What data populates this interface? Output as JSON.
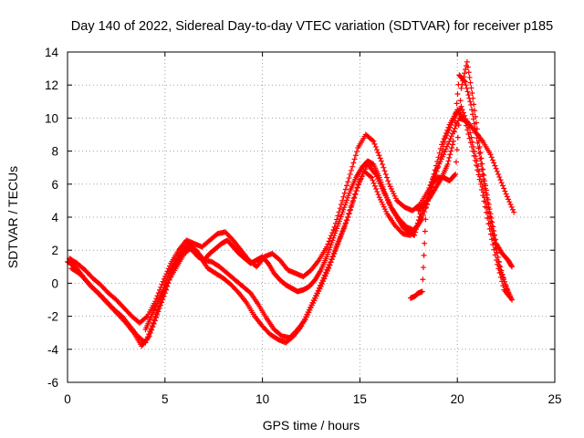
{
  "chart_data": {
    "type": "scatter",
    "title": "Day 140 of 2022, Sidereal Day-to-day VTEC variation (SDTVAR) for receiver p185",
    "xlabel": "GPS time / hours",
    "ylabel": "SDTVAR / TECUs",
    "xlim": [
      0,
      25
    ],
    "ylim": [
      -6,
      14
    ],
    "xticks": [
      0,
      5,
      10,
      15,
      20,
      25
    ],
    "yticks": [
      -6,
      -4,
      -2,
      0,
      2,
      4,
      6,
      8,
      10,
      12,
      14
    ],
    "xtick_labels": [
      "0",
      "5",
      "10",
      "15",
      "20",
      "25"
    ],
    "ytick_labels": [
      "-6",
      "-4",
      "-2",
      "0",
      "2",
      "4",
      "6",
      "8",
      "10",
      "12",
      "14"
    ],
    "grid": true,
    "marker": "+",
    "series": [
      {
        "name": "track-1",
        "color": "#ff0000",
        "x": [
          0.0,
          0.4,
          0.8,
          1.2,
          1.6,
          2.0,
          2.4,
          2.8,
          3.2,
          3.6,
          4.0,
          4.4,
          4.8,
          5.2,
          5.6,
          6.0,
          6.4,
          6.8,
          7.2,
          7.6,
          8.0,
          8.4,
          8.8,
          9.2,
          9.6,
          10.0,
          10.4,
          10.8,
          11.2,
          11.6,
          12.0,
          12.4,
          12.8,
          13.2,
          13.6,
          14.0,
          14.4,
          14.8,
          15.2,
          15.6,
          16.0,
          16.4,
          16.8,
          17.2,
          17.6,
          18.0,
          18.4,
          18.8,
          19.2,
          19.6,
          20.0,
          20.4,
          20.8,
          21.2,
          21.6,
          22.0,
          22.4,
          22.8
        ],
        "y": [
          1.3,
          1.0,
          0.4,
          -0.2,
          -0.6,
          -1.1,
          -1.6,
          -2.0,
          -2.6,
          -3.2,
          -3.6,
          -2.4,
          -1.0,
          0.2,
          1.0,
          1.8,
          2.2,
          1.6,
          0.9,
          0.6,
          0.3,
          -0.1,
          -0.6,
          -1.2,
          -2.0,
          -2.6,
          -3.1,
          -3.4,
          -3.6,
          -3.2,
          -2.6,
          -1.6,
          -0.6,
          0.5,
          1.6,
          2.8,
          4.0,
          5.6,
          6.8,
          6.4,
          5.2,
          4.2,
          3.5,
          3.0,
          2.9,
          3.6,
          5.0,
          6.6,
          8.4,
          9.6,
          10.5,
          9.8,
          8.0,
          6.0,
          3.6,
          1.4,
          -0.4,
          -1.0
        ]
      },
      {
        "name": "track-2",
        "color": "#ff0000",
        "x": [
          0.2,
          0.6,
          1.0,
          1.4,
          1.8,
          2.2,
          2.6,
          3.0,
          3.4,
          3.8,
          4.2,
          4.6,
          5.0,
          5.4,
          5.8,
          6.2,
          6.6,
          7.0,
          7.4,
          7.8,
          8.2,
          8.6,
          9.0,
          9.4,
          9.8,
          10.2,
          10.6,
          11.0,
          11.4,
          11.8,
          12.2,
          12.6,
          13.0,
          13.4,
          13.8,
          14.2,
          14.6,
          15.0,
          15.4,
          15.8,
          16.2,
          16.6,
          17.0,
          17.4,
          17.8,
          18.2,
          18.6,
          19.0,
          19.4,
          19.8,
          20.2,
          20.6,
          21.0,
          21.4,
          21.8,
          22.2,
          22.6
        ],
        "y": [
          0.9,
          0.6,
          0.1,
          -0.4,
          -0.9,
          -1.4,
          -1.9,
          -2.4,
          -3.0,
          -3.8,
          -3.2,
          -1.9,
          -0.6,
          0.8,
          1.6,
          2.4,
          2.0,
          1.4,
          1.3,
          1.0,
          0.6,
          0.2,
          -0.2,
          -0.6,
          -1.3,
          -2.1,
          -2.8,
          -3.2,
          -3.3,
          -2.8,
          -2.2,
          -1.2,
          -0.2,
          0.9,
          2.2,
          3.4,
          4.8,
          6.2,
          7.2,
          6.6,
          5.6,
          4.6,
          3.9,
          3.4,
          3.2,
          3.9,
          5.4,
          7.0,
          8.8,
          9.9,
          10.7,
          9.4,
          7.4,
          5.2,
          3.0,
          1.0,
          -0.6
        ]
      },
      {
        "name": "track-3",
        "color": "#ff0000",
        "x": [
          0.1,
          0.5,
          0.9,
          1.3,
          1.7,
          2.1,
          2.5,
          2.9,
          3.3,
          3.7,
          4.1,
          4.5,
          4.9,
          5.3,
          5.7,
          6.1,
          6.5,
          6.9,
          7.3,
          7.7,
          8.1,
          8.5,
          8.9,
          9.3,
          9.7,
          10.1,
          10.5,
          10.9,
          11.3,
          11.7,
          12.1,
          12.5,
          12.9,
          13.3,
          13.7,
          14.1,
          14.5,
          14.9,
          15.3,
          15.7,
          16.1,
          16.5,
          16.9,
          17.3,
          17.7,
          18.1,
          18.5,
          18.9,
          19.3,
          19.7,
          20.1,
          20.5,
          20.9,
          21.3,
          21.7,
          22.1,
          22.5,
          22.9
        ],
        "y": [
          1.5,
          1.2,
          0.8,
          0.3,
          -0.1,
          -0.6,
          -1.0,
          -1.5,
          -2.0,
          -2.4,
          -2.0,
          -1.1,
          0.1,
          1.2,
          2.0,
          2.6,
          2.4,
          2.2,
          2.6,
          3.0,
          3.1,
          2.6,
          2.0,
          1.4,
          1.0,
          1.6,
          1.8,
          1.4,
          0.8,
          0.6,
          0.4,
          0.8,
          1.4,
          2.2,
          3.4,
          5.0,
          6.6,
          8.2,
          9.0,
          8.6,
          7.4,
          6.0,
          5.0,
          4.6,
          4.4,
          4.8,
          5.6,
          6.8,
          7.8,
          8.9,
          10.0,
          9.8,
          9.2,
          8.6,
          7.8,
          6.6,
          5.4,
          4.3
        ]
      },
      {
        "name": "track-4",
        "color": "#ff0000",
        "x": [
          4.0,
          4.3,
          4.6,
          4.9,
          5.2,
          5.5,
          5.8,
          6.1,
          6.4,
          6.7,
          7.0,
          7.3,
          7.6,
          7.9,
          8.2,
          8.5,
          8.8,
          9.1,
          9.4,
          9.7,
          10.0,
          10.3,
          10.6,
          10.9,
          11.2,
          11.5,
          11.8,
          12.1,
          12.4,
          12.7,
          13.0,
          13.3,
          13.6,
          13.9,
          14.2,
          14.5,
          14.8,
          15.1,
          15.4,
          15.7,
          16.0,
          16.3,
          16.6,
          16.9,
          17.2,
          17.5,
          17.8,
          18.1
        ],
        "y": [
          -2.8,
          -2.0,
          -1.2,
          -0.4,
          0.6,
          1.2,
          1.8,
          2.2,
          2.0,
          1.6,
          1.4,
          1.8,
          2.1,
          2.4,
          2.6,
          2.2,
          1.8,
          1.5,
          1.2,
          1.4,
          1.6,
          1.2,
          0.6,
          0.2,
          -0.1,
          -0.3,
          -0.5,
          -0.4,
          -0.2,
          0.2,
          0.8,
          1.6,
          2.6,
          3.6,
          4.6,
          5.6,
          6.4,
          7.0,
          7.4,
          7.2,
          6.4,
          5.4,
          4.6,
          4.0,
          3.4,
          3.1,
          2.9,
          4.2
        ]
      },
      {
        "name": "track-5",
        "color": "#ff0000",
        "x": [
          18.0,
          18.3,
          18.6,
          18.9,
          19.2,
          19.5,
          19.8,
          20.1,
          20.4,
          20.7,
          21.0,
          21.3,
          21.6,
          21.9,
          22.2,
          22.5,
          22.8
        ],
        "y": [
          4.4,
          4.8,
          5.2,
          5.8,
          6.4,
          7.2,
          8.6,
          12.6,
          12.2,
          10.8,
          8.8,
          6.6,
          4.6,
          2.6,
          0.8,
          -0.2,
          -1.0
        ]
      },
      {
        "name": "track-6",
        "color": "#ff0000",
        "x": [
          17.6,
          17.8,
          18.0,
          18.2,
          18.4,
          18.7,
          19.0,
          19.3,
          19.6,
          19.9,
          20.2,
          20.5,
          20.8,
          21.1,
          21.4,
          21.7,
          22.0,
          22.3,
          22.6,
          22.8
        ],
        "y": [
          -0.9,
          -0.8,
          -0.6,
          -0.5,
          4.6,
          6.0,
          6.4,
          6.4,
          6.2,
          6.6,
          11.8,
          13.4,
          11.2,
          8.6,
          6.2,
          4.2,
          2.4,
          1.8,
          1.4,
          1.0
        ]
      }
    ]
  }
}
